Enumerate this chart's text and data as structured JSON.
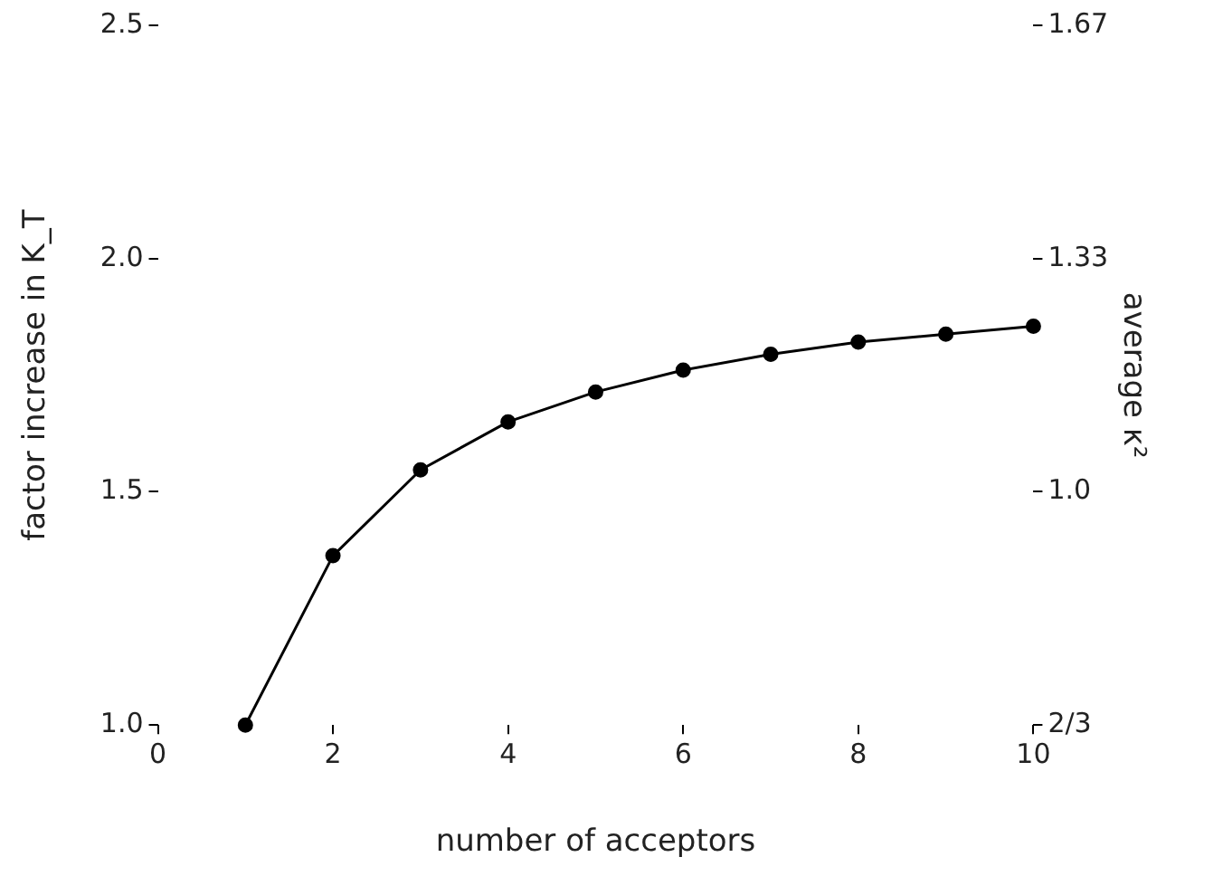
{
  "chart_data": {
    "type": "line",
    "xlabel": "number of acceptors",
    "ylabel": "factor increase in K_T",
    "y2label": "average κ²",
    "x": [
      1,
      2,
      3,
      4,
      5,
      6,
      7,
      8,
      9,
      10
    ],
    "series": [
      {
        "color": "#000000",
        "values": [
          1.0,
          1.363,
          1.547,
          1.65,
          1.714,
          1.761,
          1.795,
          1.821,
          1.838,
          1.855
        ]
      }
    ],
    "xlim": [
      0,
      10
    ],
    "xticks": [
      0,
      2,
      4,
      6,
      8,
      10
    ],
    "ylim": [
      1.0,
      2.5
    ],
    "yticks": [
      {
        "value": 1.0,
        "label": "1.0"
      },
      1.5,
      {
        "value": 2.0,
        "label": "2.0"
      },
      2.5
    ],
    "y2lim": [
      0.6667,
      1.6667
    ],
    "y2ticks": [
      {
        "value": 0.6667,
        "label": "2/3"
      },
      {
        "value": 1.0,
        "label": "1.0"
      },
      {
        "value": 1.3333,
        "label": "1.33"
      },
      {
        "value": 1.6667,
        "label": "1.67"
      }
    ],
    "marker": "circle",
    "line_style": "solid",
    "grid": false,
    "legend": false
  }
}
